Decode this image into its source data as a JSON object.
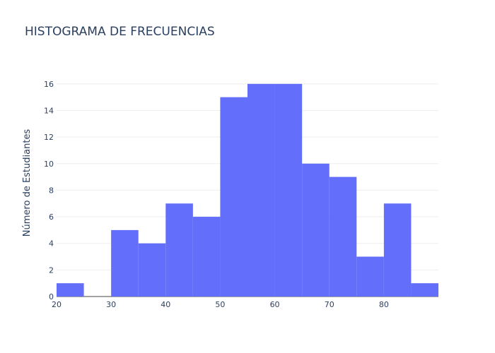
{
  "chart_data": {
    "type": "bar",
    "title": "HISTOGRAMA DE FRECUENCIAS",
    "xlabel": "",
    "ylabel": "Número de Estudiantes",
    "bin_edges": [
      20,
      25,
      30,
      35,
      40,
      45,
      50,
      55,
      60,
      65,
      70,
      75,
      80,
      85,
      90
    ],
    "values": [
      1,
      0,
      5,
      4,
      7,
      6,
      15,
      16,
      16,
      10,
      9,
      3,
      7,
      1
    ],
    "xlim": [
      20,
      90
    ],
    "ylim": [
      0,
      17
    ],
    "x_ticks": [
      20,
      30,
      40,
      50,
      60,
      70,
      80
    ],
    "y_ticks": [
      0,
      2,
      4,
      6,
      8,
      10,
      12,
      14,
      16
    ],
    "grid": "horizontal",
    "legend": "none",
    "bar_color": "#636efa",
    "gridline_color": "#eeeeee"
  }
}
